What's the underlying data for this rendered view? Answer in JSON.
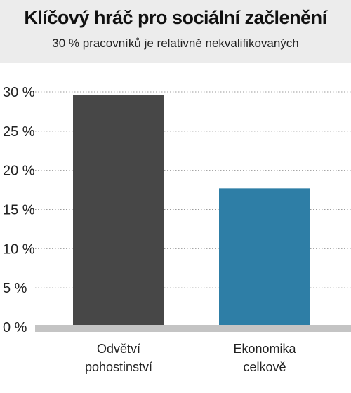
{
  "header": {
    "title": "Klíčový hráč pro sociální začlenění",
    "subtitle": "30 % pracovníků je relativně nekvalifikovaných"
  },
  "chart_data": {
    "type": "bar",
    "title": "Klíčový hráč pro sociální začlenění",
    "subtitle": "30 % pracovníků je relativně nekvalifikovaných",
    "categories": [
      [
        "Odvětví",
        "pohostinství"
      ],
      [
        "Ekonomika",
        "celkově"
      ]
    ],
    "values": [
      29.6,
      17.7
    ],
    "colors": [
      "#474747",
      "#2e7ea6"
    ],
    "ylim": [
      0,
      30
    ],
    "yticks": [
      0,
      5,
      10,
      15,
      20,
      25,
      30
    ],
    "ytick_labels": [
      "0 %",
      "5 %",
      "10 %",
      "15 %",
      "20 %",
      "25 %",
      "30 %"
    ],
    "grid": true,
    "xlabel": "",
    "ylabel": ""
  }
}
